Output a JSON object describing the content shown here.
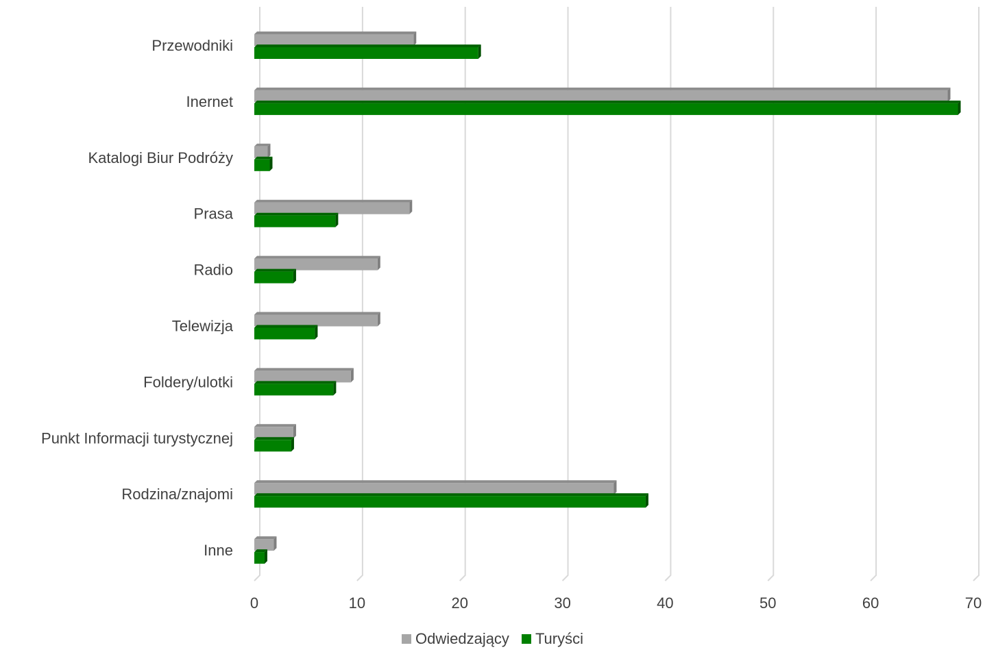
{
  "chart_data": {
    "type": "bar",
    "orientation": "horizontal",
    "categories": [
      "Przewodniki",
      "Inernet",
      "Katalogi Biur Podróży",
      "Prasa",
      "Radio",
      "Telewizja",
      "Foldery/ulotki",
      "Punkt Informacji turystycznej",
      "Rodzina/znajomi",
      "Inne"
    ],
    "series": [
      {
        "name": "Odwiedzający",
        "color": "#a6a6a6",
        "values": [
          15.5,
          67.5,
          1.3,
          15.1,
          12.0,
          12.0,
          9.4,
          3.8,
          35.0,
          1.9
        ]
      },
      {
        "name": "Turyści",
        "color": "#008000",
        "values": [
          21.8,
          68.5,
          1.5,
          7.9,
          3.8,
          5.9,
          7.7,
          3.6,
          38.1,
          1.0
        ]
      }
    ],
    "xlim": [
      0,
      70
    ],
    "xticks": [
      "0",
      "10",
      "20",
      "30",
      "40",
      "50",
      "60",
      "70"
    ],
    "grid": true,
    "legend": "bottom"
  }
}
